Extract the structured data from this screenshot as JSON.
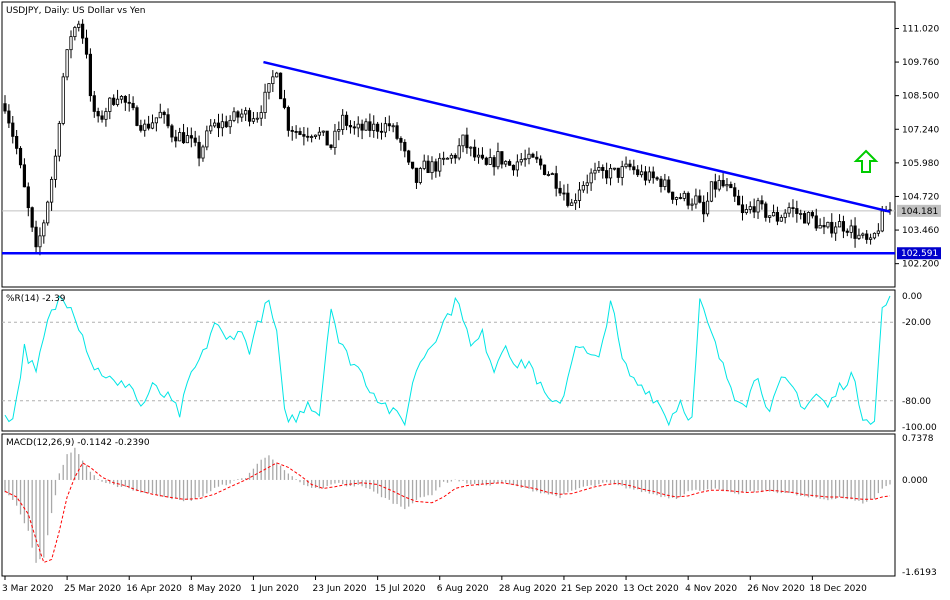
{
  "chart_data": [
    {
      "id": "price",
      "type": "candlestick",
      "title": "USDJPY, Daily:  US Dollar vs Yen",
      "ylim": [
        101.4,
        111.9
      ],
      "y_ticks": [
        "111.020",
        "109.760",
        "108.500",
        "107.240",
        "105.980",
        "104.720",
        "103.460",
        "102.200"
      ],
      "current_price_label": "104.181",
      "current_price": 104.181,
      "support_level_label": "102.591",
      "support_level": 102.591,
      "trendline": {
        "from": [
          "1 Jun 2020",
          109.76
        ],
        "to": [
          "31 Dec 2020",
          104.15
        ]
      },
      "signal_arrow": {
        "direction": "up",
        "color": "#00cc00"
      },
      "colors": {
        "candles": "#000000",
        "lines": "#0000ff",
        "label_bg": "#0000cc",
        "price_label_bg": "#c0c0c0"
      },
      "anchors": [
        [
          0,
          108.2
        ],
        [
          3,
          106.5
        ],
        [
          6,
          104.2
        ],
        [
          8,
          102.6
        ],
        [
          10,
          103.8
        ],
        [
          13,
          106.2
        ],
        [
          15,
          109.2
        ],
        [
          17,
          110.8
        ],
        [
          19,
          111.3
        ],
        [
          21,
          110.2
        ],
        [
          22,
          108.3
        ],
        [
          24,
          107.5
        ],
        [
          26,
          108.0
        ],
        [
          29,
          108.6
        ],
        [
          32,
          108.0
        ],
        [
          36,
          107.3
        ],
        [
          40,
          107.8
        ],
        [
          43,
          107.1
        ],
        [
          47,
          106.9
        ],
        [
          50,
          106.3
        ],
        [
          53,
          107.3
        ],
        [
          57,
          107.5
        ],
        [
          61,
          107.8
        ],
        [
          65,
          107.8
        ],
        [
          68,
          108.7
        ],
        [
          70,
          109.6
        ],
        [
          71,
          108.6
        ],
        [
          73,
          107.4
        ],
        [
          76,
          107.1
        ],
        [
          80,
          107.2
        ],
        [
          84,
          106.6
        ],
        [
          87,
          107.6
        ],
        [
          90,
          107.2
        ],
        [
          95,
          107.3
        ],
        [
          99,
          107.4
        ],
        [
          102,
          106.7
        ],
        [
          104,
          105.8
        ],
        [
          106,
          105.3
        ],
        [
          108,
          105.8
        ],
        [
          112,
          105.9
        ],
        [
          116,
          106.3
        ],
        [
          118,
          106.8
        ],
        [
          121,
          106.2
        ],
        [
          124,
          105.8
        ],
        [
          127,
          106.2
        ],
        [
          130,
          105.9
        ],
        [
          133,
          106.1
        ],
        [
          137,
          106.0
        ],
        [
          141,
          105.5
        ],
        [
          144,
          104.9
        ],
        [
          146,
          104.4
        ],
        [
          148,
          105.1
        ],
        [
          151,
          105.5
        ],
        [
          155,
          105.6
        ],
        [
          158,
          105.6
        ],
        [
          161,
          105.8
        ],
        [
          163,
          105.6
        ],
        [
          166,
          105.4
        ],
        [
          169,
          105.3
        ],
        [
          172,
          104.8
        ],
        [
          174,
          104.7
        ],
        [
          176,
          104.6
        ],
        [
          178,
          104.6
        ],
        [
          180,
          104.0
        ],
        [
          182,
          105.0
        ],
        [
          184,
          105.2
        ],
        [
          186,
          105.0
        ],
        [
          188,
          104.6
        ],
        [
          190,
          104.0
        ],
        [
          193,
          104.4
        ],
        [
          196,
          104.1
        ],
        [
          199,
          103.9
        ],
        [
          202,
          104.3
        ],
        [
          205,
          104.0
        ],
        [
          208,
          103.9
        ],
        [
          211,
          103.4
        ],
        [
          214,
          103.7
        ],
        [
          217,
          103.6
        ],
        [
          220,
          103.2
        ],
        [
          223,
          102.9
        ],
        [
          225,
          103.6
        ],
        [
          227,
          104.2
        ]
      ],
      "x_labels": [
        [
          "3 Mar 2020",
          0
        ],
        [
          "25 Mar 2020",
          16
        ],
        [
          "16 Apr 2020",
          32
        ],
        [
          "8 May 2020",
          48
        ],
        [
          "1 Jun 2020",
          64
        ],
        [
          "23 Jun 2020",
          80
        ],
        [
          "15 Jul 2020",
          96
        ],
        [
          "6 Aug 2020",
          112
        ],
        [
          "28 Aug 2020",
          128
        ],
        [
          "21 Sep 2020",
          144
        ],
        [
          "13 Oct 2020",
          160
        ],
        [
          "4 Nov 2020",
          176
        ],
        [
          "26 Nov 2020",
          192
        ],
        [
          "18 Dec 2020",
          208
        ]
      ]
    },
    {
      "id": "williams",
      "type": "line",
      "title": "%R(14) -2.39",
      "ylim": [
        -100,
        0
      ],
      "y_ticks": [
        "0.00",
        "-20.00",
        "-80.00",
        "-100.00"
      ],
      "levels": [
        -20,
        -80
      ],
      "color": "#00e5e5",
      "series": [
        [
          0,
          -88
        ],
        [
          2,
          -95
        ],
        [
          5,
          -40
        ],
        [
          8,
          -60
        ],
        [
          11,
          -20
        ],
        [
          14,
          -2
        ],
        [
          17,
          -5
        ],
        [
          20,
          -30
        ],
        [
          23,
          -55
        ],
        [
          26,
          -60
        ],
        [
          29,
          -70
        ],
        [
          32,
          -65
        ],
        [
          35,
          -85
        ],
        [
          38,
          -70
        ],
        [
          42,
          -78
        ],
        [
          45,
          -90
        ],
        [
          48,
          -60
        ],
        [
          51,
          -45
        ],
        [
          54,
          -20
        ],
        [
          57,
          -35
        ],
        [
          60,
          -25
        ],
        [
          63,
          -40
        ],
        [
          66,
          -15
        ],
        [
          68,
          -5
        ],
        [
          70,
          -30
        ],
        [
          72,
          -90
        ],
        [
          75,
          -95
        ],
        [
          78,
          -80
        ],
        [
          81,
          -90
        ],
        [
          84,
          -5
        ],
        [
          86,
          -35
        ],
        [
          88,
          -45
        ],
        [
          91,
          -55
        ],
        [
          94,
          -70
        ],
        [
          97,
          -80
        ],
        [
          100,
          -90
        ],
        [
          103,
          -95
        ],
        [
          106,
          -55
        ],
        [
          109,
          -40
        ],
        [
          112,
          -25
        ],
        [
          115,
          -10
        ],
        [
          117,
          -2
        ],
        [
          120,
          -40
        ],
        [
          123,
          -30
        ],
        [
          126,
          -55
        ],
        [
          129,
          -35
        ],
        [
          132,
          -55
        ],
        [
          135,
          -50
        ],
        [
          138,
          -70
        ],
        [
          141,
          -85
        ],
        [
          144,
          -75
        ],
        [
          147,
          -35
        ],
        [
          150,
          -45
        ],
        [
          153,
          -50
        ],
        [
          156,
          -2
        ],
        [
          159,
          -50
        ],
        [
          162,
          -65
        ],
        [
          165,
          -70
        ],
        [
          168,
          -80
        ],
        [
          171,
          -95
        ],
        [
          174,
          -80
        ],
        [
          177,
          -95
        ],
        [
          179,
          -5
        ],
        [
          182,
          -30
        ],
        [
          185,
          -55
        ],
        [
          188,
          -75
        ],
        [
          191,
          -80
        ],
        [
          194,
          -60
        ],
        [
          197,
          -90
        ],
        [
          200,
          -65
        ],
        [
          203,
          -70
        ],
        [
          206,
          -85
        ],
        [
          209,
          -75
        ],
        [
          212,
          -85
        ],
        [
          215,
          -70
        ],
        [
          218,
          -60
        ],
        [
          221,
          -90
        ],
        [
          224,
          -95
        ],
        [
          226,
          -10
        ],
        [
          228,
          -2
        ]
      ]
    },
    {
      "id": "macd",
      "type": "histogram",
      "title": "MACD(12,26,9) -0.1142 -0.2390",
      "ylim": [
        -1.6193,
        0.7378
      ],
      "y_ticks": [
        "0.7378",
        "0.000",
        "-1.6193"
      ],
      "colors": {
        "histogram": "#a9a9a9",
        "signal": "#ff0000"
      },
      "histogram": [
        [
          0,
          -0.2
        ],
        [
          3,
          -0.45
        ],
        [
          6,
          -0.9
        ],
        [
          8,
          -1.45
        ],
        [
          10,
          -1.35
        ],
        [
          12,
          -0.6
        ],
        [
          14,
          0.1
        ],
        [
          16,
          0.45
        ],
        [
          18,
          0.55
        ],
        [
          20,
          0.35
        ],
        [
          22,
          0.15
        ],
        [
          25,
          -0.05
        ],
        [
          28,
          -0.1
        ],
        [
          31,
          -0.12
        ],
        [
          34,
          -0.2
        ],
        [
          38,
          -0.25
        ],
        [
          42,
          -0.3
        ],
        [
          46,
          -0.38
        ],
        [
          50,
          -0.32
        ],
        [
          54,
          -0.15
        ],
        [
          58,
          -0.05
        ],
        [
          62,
          0.05
        ],
        [
          66,
          0.35
        ],
        [
          68,
          0.45
        ],
        [
          70,
          0.3
        ],
        [
          73,
          0.1
        ],
        [
          76,
          -0.05
        ],
        [
          79,
          -0.15
        ],
        [
          82,
          -0.15
        ],
        [
          85,
          -0.05
        ],
        [
          88,
          -0.1
        ],
        [
          92,
          -0.1
        ],
        [
          96,
          -0.25
        ],
        [
          100,
          -0.4
        ],
        [
          103,
          -0.5
        ],
        [
          106,
          -0.35
        ],
        [
          110,
          -0.25
        ],
        [
          113,
          -0.05
        ],
        [
          116,
          0.0
        ],
        [
          119,
          -0.05
        ],
        [
          122,
          -0.1
        ],
        [
          125,
          -0.08
        ],
        [
          128,
          -0.05
        ],
        [
          131,
          -0.1
        ],
        [
          134,
          -0.15
        ],
        [
          137,
          -0.2
        ],
        [
          140,
          -0.25
        ],
        [
          143,
          -0.3
        ],
        [
          146,
          -0.2
        ],
        [
          149,
          -0.12
        ],
        [
          152,
          -0.1
        ],
        [
          155,
          -0.05
        ],
        [
          158,
          -0.1
        ],
        [
          161,
          -0.15
        ],
        [
          164,
          -0.2
        ],
        [
          167,
          -0.25
        ],
        [
          170,
          -0.3
        ],
        [
          173,
          -0.32
        ],
        [
          176,
          -0.2
        ],
        [
          179,
          -0.18
        ],
        [
          182,
          -0.15
        ],
        [
          185,
          -0.2
        ],
        [
          188,
          -0.25
        ],
        [
          191,
          -0.22
        ],
        [
          194,
          -0.2
        ],
        [
          197,
          -0.2
        ],
        [
          200,
          -0.22
        ],
        [
          203,
          -0.25
        ],
        [
          206,
          -0.3
        ],
        [
          209,
          -0.32
        ],
        [
          212,
          -0.35
        ],
        [
          215,
          -0.3
        ],
        [
          218,
          -0.35
        ],
        [
          221,
          -0.4
        ],
        [
          224,
          -0.32
        ],
        [
          226,
          -0.15
        ],
        [
          228,
          -0.08
        ]
      ],
      "signal": [
        [
          0,
          -0.2
        ],
        [
          3,
          -0.3
        ],
        [
          6,
          -0.6
        ],
        [
          8,
          -1.05
        ],
        [
          10,
          -1.45
        ],
        [
          12,
          -1.4
        ],
        [
          14,
          -0.9
        ],
        [
          16,
          -0.3
        ],
        [
          18,
          0.05
        ],
        [
          20,
          0.3
        ],
        [
          22,
          0.22
        ],
        [
          25,
          0.05
        ],
        [
          28,
          -0.05
        ],
        [
          31,
          -0.1
        ],
        [
          34,
          -0.18
        ],
        [
          38,
          -0.25
        ],
        [
          42,
          -0.3
        ],
        [
          46,
          -0.34
        ],
        [
          50,
          -0.33
        ],
        [
          54,
          -0.25
        ],
        [
          58,
          -0.12
        ],
        [
          62,
          0.0
        ],
        [
          66,
          0.15
        ],
        [
          70,
          0.3
        ],
        [
          73,
          0.22
        ],
        [
          76,
          0.08
        ],
        [
          79,
          -0.08
        ],
        [
          82,
          -0.15
        ],
        [
          85,
          -0.12
        ],
        [
          88,
          -0.08
        ],
        [
          92,
          -0.05
        ],
        [
          96,
          -0.08
        ],
        [
          100,
          -0.2
        ],
        [
          103,
          -0.3
        ],
        [
          106,
          -0.38
        ],
        [
          110,
          -0.4
        ],
        [
          113,
          -0.3
        ],
        [
          116,
          -0.15
        ],
        [
          119,
          -0.1
        ],
        [
          122,
          -0.08
        ],
        [
          125,
          -0.06
        ],
        [
          128,
          -0.05
        ],
        [
          131,
          -0.08
        ],
        [
          134,
          -0.12
        ],
        [
          137,
          -0.16
        ],
        [
          140,
          -0.22
        ],
        [
          143,
          -0.25
        ],
        [
          146,
          -0.24
        ],
        [
          149,
          -0.18
        ],
        [
          152,
          -0.12
        ],
        [
          155,
          -0.08
        ],
        [
          158,
          -0.06
        ],
        [
          161,
          -0.1
        ],
        [
          164,
          -0.16
        ],
        [
          167,
          -0.2
        ],
        [
          170,
          -0.26
        ],
        [
          173,
          -0.3
        ],
        [
          176,
          -0.28
        ],
        [
          179,
          -0.22
        ],
        [
          182,
          -0.18
        ],
        [
          185,
          -0.18
        ],
        [
          188,
          -0.2
        ],
        [
          191,
          -0.22
        ],
        [
          194,
          -0.21
        ],
        [
          197,
          -0.18
        ],
        [
          200,
          -0.2
        ],
        [
          203,
          -0.22
        ],
        [
          206,
          -0.26
        ],
        [
          209,
          -0.28
        ],
        [
          212,
          -0.3
        ],
        [
          215,
          -0.3
        ],
        [
          218,
          -0.32
        ],
        [
          221,
          -0.34
        ],
        [
          224,
          -0.34
        ],
        [
          226,
          -0.3
        ],
        [
          228,
          -0.28
        ]
      ]
    }
  ]
}
